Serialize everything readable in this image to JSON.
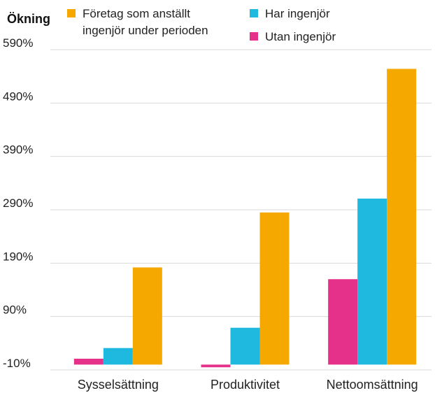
{
  "chart_data": {
    "type": "bar",
    "ylabel": "Ökning",
    "title": "",
    "xlabel": "",
    "categories": [
      "Sysselsättning",
      "Produktivitet",
      "Nettoomsättning"
    ],
    "series": [
      {
        "name": "Utan ingenjör",
        "color": "#e6318a",
        "values": [
          11,
          -5,
          160
        ]
      },
      {
        "name": "Har ingenjör",
        "color": "#1fb9df",
        "values": [
          31,
          69,
          311
        ]
      },
      {
        "name": "Företag som anställt ingenjör under perioden",
        "color": "#f5a800",
        "values": [
          182,
          285,
          554
        ]
      }
    ],
    "legend": [
      {
        "series": 2,
        "lines": [
          "Företag som anställt",
          "ingenjör under perioden"
        ]
      },
      {
        "series": 1,
        "lines": [
          "Har ingenjör"
        ]
      },
      {
        "series": 0,
        "lines": [
          "Utan ingenjör"
        ]
      }
    ],
    "ylim": [
      -10,
      590
    ],
    "yticks": [
      -10,
      90,
      190,
      290,
      390,
      490,
      590
    ],
    "ytick_labels": [
      "-10%",
      "90%",
      "190%",
      "290%",
      "390%",
      "490%",
      "590%"
    ],
    "grid": true,
    "legend_placement": "top"
  }
}
